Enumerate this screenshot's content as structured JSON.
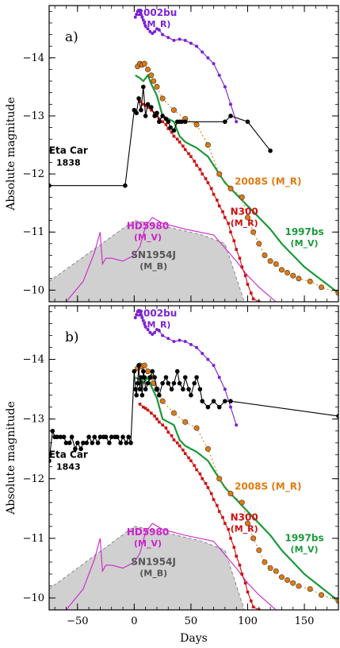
{
  "chart_data": [
    {
      "type": "line",
      "panel_label": "a)",
      "ylabel": "Absolute magnitude",
      "xlabel": "",
      "xlim": [
        -75,
        180
      ],
      "ylim": [
        -9.8,
        -14.9
      ],
      "y_inverted": true,
      "y_ticks": [
        -14,
        -13,
        -12,
        -11,
        -10
      ],
      "y_tick_labels": [
        "−14",
        "−13",
        "−12",
        "−11",
        "−10"
      ],
      "x_ticks": [
        -50,
        0,
        50,
        100,
        150
      ],
      "x_tick_labels": [
        "",
        "",
        "",
        "",
        ""
      ],
      "annotations": [
        {
          "id": "2002bu",
          "name": "2002bu",
          "band": "(M_R)",
          "color": "#7b22d4"
        },
        {
          "id": "2008S",
          "name": "2008S (M_R)",
          "band": "",
          "color": "#e07a10"
        },
        {
          "id": "1997bs",
          "name": "1997bs",
          "band": "(M_V)",
          "color": "#1a9a3a"
        },
        {
          "id": "N300",
          "name": "N300",
          "band": "(M_R)",
          "color": "#cc1111"
        },
        {
          "id": "HD5980",
          "name": "HD5980",
          "band": "(M_V)",
          "color": "#cc22cc"
        },
        {
          "id": "SN1954J",
          "name": "SN1954J",
          "band": "(M_B)",
          "color": "#555555"
        },
        {
          "id": "EtaCar",
          "name": "Eta Car",
          "band": "1838",
          "color": "#000000"
        }
      ],
      "series": [
        {
          "id": "sn1954j",
          "color": "#888888",
          "fill": "#d0d0d0",
          "x": [
            -75,
            0,
            15,
            60,
            80,
            97
          ],
          "y": [
            -10.15,
            -11.2,
            -11.15,
            -10.95,
            -10.8,
            -9.8
          ]
        },
        {
          "id": "hd5980",
          "color": "#cc22cc",
          "x": [
            -60,
            -45,
            -35,
            -30,
            -28,
            -25,
            -20,
            -10,
            0,
            5,
            10,
            16,
            25,
            45,
            70,
            90,
            100,
            110,
            125
          ],
          "y": [
            -9.8,
            -10.15,
            -10.65,
            -11.0,
            -10.45,
            -10.55,
            -10.55,
            -10.5,
            -10.6,
            -10.75,
            -11.1,
            -11.25,
            -11.15,
            -11.05,
            -10.95,
            -10.5,
            -10.25,
            -10.05,
            -9.8
          ]
        },
        {
          "id": "sn1997bs",
          "color": "#1a9a3a",
          "x": [
            1,
            5,
            8,
            12,
            15,
            20,
            25,
            35,
            40,
            45,
            55,
            65,
            70,
            75,
            80,
            90,
            100,
            110,
            120,
            130,
            140,
            150,
            160,
            170,
            180
          ],
          "y": [
            -13.7,
            -13.65,
            -13.6,
            -13.7,
            -13.55,
            -13.35,
            -13.0,
            -12.9,
            -12.65,
            -12.55,
            -12.45,
            -12.3,
            -12.15,
            -12.0,
            -11.85,
            -11.65,
            -11.45,
            -11.25,
            -11.05,
            -10.8,
            -10.6,
            -10.4,
            -10.25,
            -10.1,
            -9.95
          ]
        },
        {
          "id": "sn2008s",
          "color": "#e07a10",
          "marker": "circle",
          "x": [
            3,
            5,
            7,
            9,
            12,
            15,
            17,
            20,
            25,
            35,
            45,
            55,
            65,
            75,
            85,
            95,
            100,
            105,
            110,
            115,
            120,
            125,
            130,
            135,
            140,
            145,
            155,
            165,
            180
          ],
          "y": [
            -13.85,
            -13.9,
            -13.88,
            -13.9,
            -13.8,
            -13.7,
            -13.6,
            -13.5,
            -13.3,
            -13.1,
            -12.95,
            -12.85,
            -12.5,
            -12.0,
            -11.75,
            -11.6,
            -11.25,
            -11.0,
            -10.8,
            -10.6,
            -10.5,
            -10.45,
            -10.35,
            -10.3,
            -10.25,
            -10.2,
            -10.15,
            -10.05,
            -9.95
          ]
        },
        {
          "id": "n300",
          "color": "#cc1111",
          "marker": "square",
          "x": [
            5,
            8,
            10,
            12,
            15,
            18,
            20,
            22,
            25,
            28,
            30,
            33,
            35,
            38,
            40,
            43,
            45,
            48,
            50,
            53,
            55,
            58,
            60,
            63,
            65,
            68,
            70,
            73,
            75,
            78,
            80,
            83,
            85,
            88,
            90,
            93,
            95,
            98,
            100,
            103,
            105,
            110,
            115
          ],
          "y": [
            -13.25,
            -13.2,
            -13.18,
            -13.15,
            -13.1,
            -13.05,
            -13.0,
            -12.95,
            -12.9,
            -12.85,
            -12.78,
            -12.72,
            -12.65,
            -12.6,
            -12.55,
            -12.48,
            -12.42,
            -12.35,
            -12.3,
            -12.22,
            -12.15,
            -12.08,
            -12.0,
            -11.92,
            -11.85,
            -11.75,
            -11.65,
            -11.55,
            -11.45,
            -11.35,
            -11.25,
            -11.15,
            -11.0,
            -10.85,
            -10.7,
            -10.55,
            -10.4,
            -10.25,
            -10.1,
            -9.95,
            -9.85,
            -9.8,
            -9.78
          ]
        },
        {
          "id": "sn2002bu",
          "color": "#7b22d4",
          "marker": "circle",
          "x": [
            1,
            2,
            3,
            4,
            5,
            6,
            7,
            8,
            9,
            10,
            12,
            14,
            16,
            18,
            20,
            22,
            25,
            30,
            35,
            40,
            45,
            50,
            55,
            60,
            65,
            70,
            75,
            80,
            85,
            90
          ],
          "y": [
            -14.7,
            -14.75,
            -14.8,
            -14.82,
            -14.8,
            -14.75,
            -14.7,
            -14.65,
            -14.6,
            -14.55,
            -14.5,
            -14.45,
            -14.42,
            -14.45,
            -14.5,
            -14.48,
            -14.4,
            -14.35,
            -14.3,
            -14.32,
            -14.3,
            -14.25,
            -14.2,
            -14.1,
            -14.0,
            -13.9,
            -13.7,
            -13.5,
            -13.2,
            -12.9
          ]
        },
        {
          "id": "etacar",
          "color": "#000000",
          "marker": "circle",
          "x": [
            -75,
            -8,
            0,
            2,
            4,
            6,
            8,
            10,
            12,
            15,
            18,
            20,
            22,
            25,
            28,
            30,
            32,
            35,
            38,
            40,
            42,
            45,
            80,
            85,
            100,
            120
          ],
          "y": [
            -11.8,
            -11.8,
            -13.1,
            -13.05,
            -13.3,
            -13.1,
            -13.5,
            -13.0,
            -13.2,
            -13.15,
            -13.0,
            -13.05,
            -12.9,
            -13.0,
            -12.95,
            -12.9,
            -12.8,
            -12.75,
            -12.9,
            -12.9,
            -12.9,
            -12.9,
            -12.9,
            -13.0,
            -12.9,
            -12.4
          ]
        }
      ]
    },
    {
      "type": "line",
      "panel_label": "b)",
      "ylabel": "Absolute magnitude",
      "xlabel": "Days",
      "xlim": [
        -75,
        180
      ],
      "ylim": [
        -9.8,
        -14.9
      ],
      "y_inverted": true,
      "y_ticks": [
        -14,
        -13,
        -12,
        -11,
        -10
      ],
      "y_tick_labels": [
        "−14",
        "−13",
        "−12",
        "−11",
        "−10"
      ],
      "x_ticks": [
        -50,
        0,
        50,
        100,
        150
      ],
      "x_tick_labels": [
        "−50",
        "0",
        "50",
        "100",
        "150"
      ],
      "annotations": [
        {
          "id": "2002bu",
          "name": "2002bu",
          "band": "(M_R)",
          "color": "#7b22d4"
        },
        {
          "id": "2008S",
          "name": "2008S (M_R)",
          "band": "",
          "color": "#e07a10"
        },
        {
          "id": "1997bs",
          "name": "1997bs",
          "band": "(M_V)",
          "color": "#1a9a3a"
        },
        {
          "id": "N300",
          "name": "N300",
          "band": "(M_R)",
          "color": "#cc1111"
        },
        {
          "id": "HD5980",
          "name": "HD5980",
          "band": "(M_V)",
          "color": "#cc22cc"
        },
        {
          "id": "SN1954J",
          "name": "SN1954J",
          "band": "(M_B)",
          "color": "#555555"
        },
        {
          "id": "EtaCar",
          "name": "Eta Car",
          "band": "1843",
          "color": "#000000"
        }
      ],
      "series": [
        {
          "id": "sn1954j",
          "color": "#888888",
          "fill": "#d0d0d0",
          "x": [
            -75,
            0,
            15,
            60,
            80,
            97
          ],
          "y": [
            -10.15,
            -11.2,
            -11.15,
            -10.95,
            -10.8,
            -9.8
          ]
        },
        {
          "id": "hd5980",
          "color": "#cc22cc",
          "x": [
            -60,
            -45,
            -35,
            -30,
            -28,
            -25,
            -20,
            -10,
            0,
            5,
            10,
            16,
            25,
            45,
            70,
            90,
            100,
            110,
            125
          ],
          "y": [
            -9.8,
            -10.15,
            -10.65,
            -11.0,
            -10.45,
            -10.55,
            -10.55,
            -10.5,
            -10.6,
            -10.75,
            -11.1,
            -11.25,
            -11.15,
            -11.05,
            -10.95,
            -10.5,
            -10.25,
            -10.05,
            -9.8
          ]
        },
        {
          "id": "sn1997bs",
          "color": "#1a9a3a",
          "x": [
            1,
            5,
            8,
            12,
            15,
            20,
            25,
            35,
            40,
            45,
            55,
            65,
            70,
            75,
            80,
            90,
            100,
            110,
            120,
            130,
            140,
            150,
            160,
            170,
            180
          ],
          "y": [
            -13.7,
            -13.65,
            -13.6,
            -13.7,
            -13.55,
            -13.35,
            -13.0,
            -12.9,
            -12.65,
            -12.55,
            -12.45,
            -12.3,
            -12.15,
            -12.0,
            -11.85,
            -11.65,
            -11.45,
            -11.25,
            -11.05,
            -10.8,
            -10.6,
            -10.4,
            -10.25,
            -10.1,
            -9.95
          ]
        },
        {
          "id": "sn2008s",
          "color": "#e07a10",
          "marker": "circle",
          "x": [
            3,
            5,
            7,
            9,
            12,
            15,
            17,
            20,
            25,
            35,
            45,
            55,
            65,
            75,
            85,
            95,
            100,
            105,
            110,
            115,
            120,
            125,
            130,
            135,
            140,
            145,
            155,
            165,
            180
          ],
          "y": [
            -13.85,
            -13.9,
            -13.88,
            -13.9,
            -13.8,
            -13.7,
            -13.6,
            -13.5,
            -13.3,
            -13.1,
            -12.95,
            -12.85,
            -12.5,
            -12.0,
            -11.75,
            -11.6,
            -11.25,
            -11.0,
            -10.8,
            -10.6,
            -10.5,
            -10.45,
            -10.35,
            -10.3,
            -10.25,
            -10.2,
            -10.15,
            -10.05,
            -9.95
          ]
        },
        {
          "id": "n300",
          "color": "#cc1111",
          "marker": "square",
          "x": [
            5,
            8,
            10,
            12,
            15,
            18,
            20,
            22,
            25,
            28,
            30,
            33,
            35,
            38,
            40,
            43,
            45,
            48,
            50,
            53,
            55,
            58,
            60,
            63,
            65,
            68,
            70,
            73,
            75,
            78,
            80,
            83,
            85,
            88,
            90,
            93,
            95,
            98,
            100,
            103,
            105,
            110,
            115
          ],
          "y": [
            -13.25,
            -13.2,
            -13.18,
            -13.15,
            -13.1,
            -13.05,
            -13.0,
            -12.95,
            -12.9,
            -12.85,
            -12.78,
            -12.72,
            -12.65,
            -12.6,
            -12.55,
            -12.48,
            -12.42,
            -12.35,
            -12.3,
            -12.22,
            -12.15,
            -12.08,
            -12.0,
            -11.92,
            -11.85,
            -11.75,
            -11.65,
            -11.55,
            -11.45,
            -11.35,
            -11.25,
            -11.15,
            -11.0,
            -10.85,
            -10.7,
            -10.55,
            -10.4,
            -10.25,
            -10.1,
            -9.95,
            -9.85,
            -9.8,
            -9.78
          ]
        },
        {
          "id": "sn2002bu",
          "color": "#7b22d4",
          "marker": "circle",
          "x": [
            1,
            2,
            3,
            4,
            5,
            6,
            7,
            8,
            9,
            10,
            12,
            14,
            16,
            18,
            20,
            22,
            25,
            30,
            35,
            40,
            45,
            50,
            55,
            60,
            65,
            70,
            75,
            80,
            85,
            90
          ],
          "y": [
            -14.7,
            -14.75,
            -14.8,
            -14.82,
            -14.8,
            -14.75,
            -14.7,
            -14.65,
            -14.6,
            -14.55,
            -14.5,
            -14.45,
            -14.42,
            -14.45,
            -14.5,
            -14.48,
            -14.4,
            -14.35,
            -14.3,
            -14.32,
            -14.3,
            -14.25,
            -14.2,
            -14.1,
            -14.0,
            -13.9,
            -13.7,
            -13.5,
            -13.2,
            -12.9
          ]
        },
        {
          "id": "etacar",
          "color": "#000000",
          "marker": "circle",
          "x": [
            -75,
            -72,
            -70,
            -68,
            -65,
            -62,
            -60,
            -57,
            -55,
            -52,
            -50,
            -47,
            -45,
            -42,
            -40,
            -37,
            -35,
            -32,
            -30,
            -27,
            -25,
            -22,
            -20,
            -17,
            -15,
            -12,
            -10,
            -7,
            -5,
            -3,
            0,
            1,
            2,
            3,
            4,
            5,
            6,
            7,
            8,
            9,
            10,
            12,
            14,
            16,
            18,
            20,
            22,
            25,
            28,
            30,
            33,
            35,
            38,
            40,
            43,
            45,
            48,
            50,
            53,
            55,
            58,
            60,
            65,
            70,
            75,
            80,
            85,
            180
          ],
          "y": [
            -12.3,
            -12.8,
            -12.7,
            -12.7,
            -12.7,
            -12.7,
            -12.6,
            -12.6,
            -12.7,
            -12.5,
            -12.6,
            -12.5,
            -12.6,
            -12.6,
            -12.7,
            -12.6,
            -12.7,
            -12.6,
            -12.7,
            -12.7,
            -12.7,
            -12.6,
            -12.7,
            -12.7,
            -12.7,
            -12.6,
            -12.7,
            -12.6,
            -12.7,
            -12.6,
            -13.8,
            -13.5,
            -13.4,
            -13.6,
            -13.9,
            -13.5,
            -13.7,
            -13.4,
            -13.8,
            -13.7,
            -13.5,
            -13.6,
            -13.7,
            -13.8,
            -13.7,
            -13.5,
            -13.4,
            -13.6,
            -13.7,
            -13.6,
            -13.5,
            -13.6,
            -13.8,
            -13.6,
            -13.5,
            -13.7,
            -13.5,
            -13.4,
            -13.6,
            -13.7,
            -13.5,
            -13.3,
            -13.2,
            -13.3,
            -13.2,
            -13.3,
            -13.3,
            -13.05
          ]
        }
      ]
    }
  ]
}
